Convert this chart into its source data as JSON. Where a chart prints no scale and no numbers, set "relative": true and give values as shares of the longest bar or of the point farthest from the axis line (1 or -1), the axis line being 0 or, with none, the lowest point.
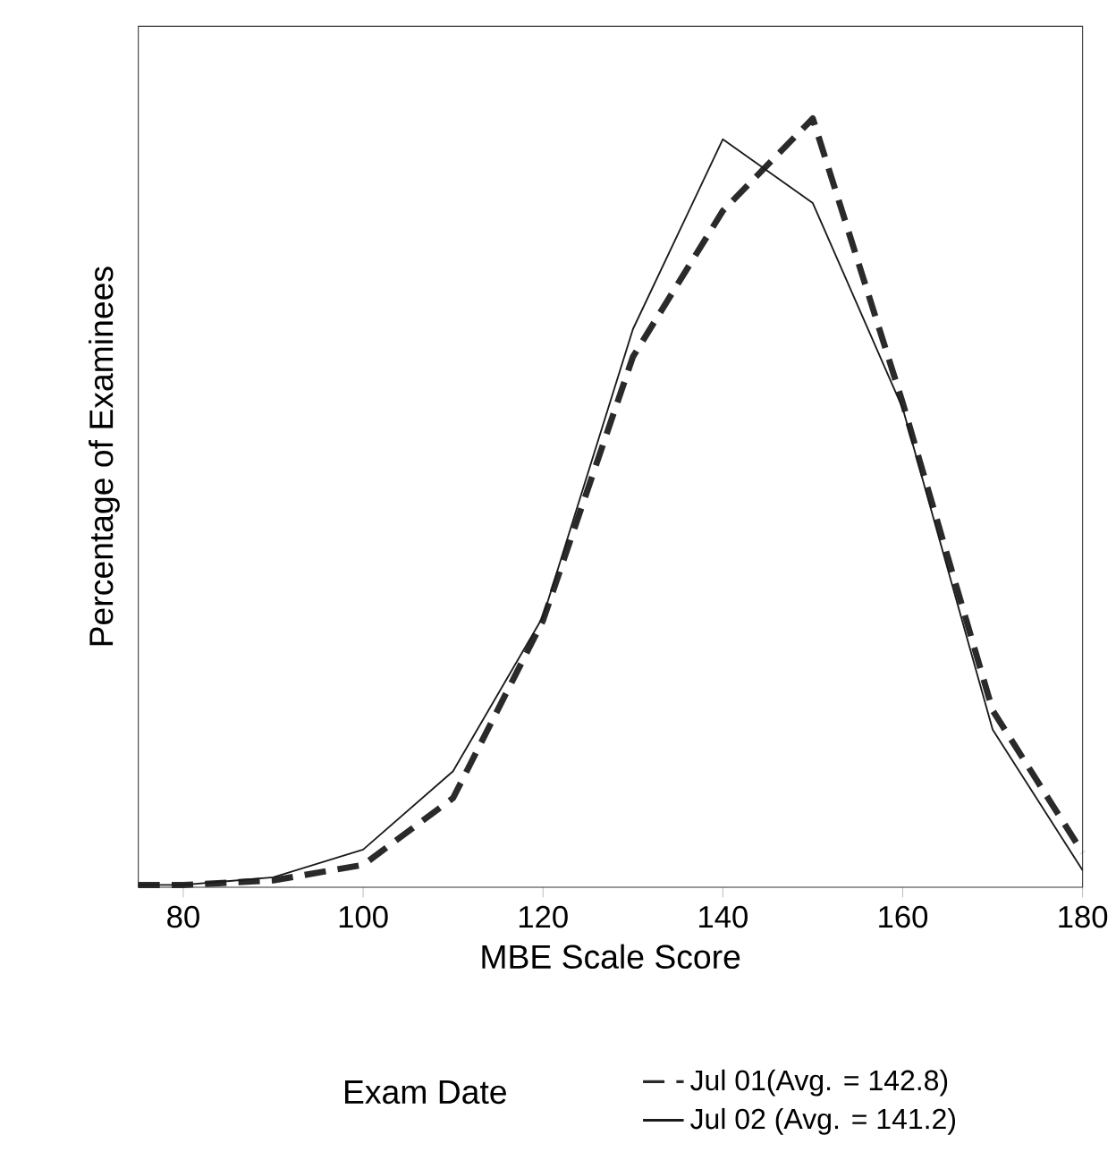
{
  "chart_data": {
    "type": "line",
    "relative": true,
    "xlabel": "MBE Scale Score",
    "ylabel": "Percentage of Examinees",
    "legend_title": "Exam Date",
    "x": [
      75,
      80,
      90,
      100,
      110,
      120,
      130,
      140,
      150,
      160,
      170,
      180
    ],
    "xlim": [
      75,
      180
    ],
    "xticks": [
      80,
      100,
      120,
      140,
      160,
      180
    ],
    "legend": "bottom",
    "marker": "none",
    "series": [
      {
        "name": "Jul 01(Avg. = 142.8)",
        "color": "#2a2a2a",
        "line_style": "dashed",
        "values": [
          0.003,
          0.003,
          0.009,
          0.029,
          0.116,
          0.347,
          0.69,
          0.88,
          1.0,
          0.63,
          0.23,
          0.045
        ]
      },
      {
        "name": "Jul 02 (Avg. = 141.2)",
        "color": "#1a1a1a",
        "line_style": "solid",
        "values": [
          0.003,
          0.003,
          0.013,
          0.049,
          0.151,
          0.352,
          0.726,
          0.973,
          0.89,
          0.623,
          0.205,
          0.022
        ]
      }
    ]
  }
}
